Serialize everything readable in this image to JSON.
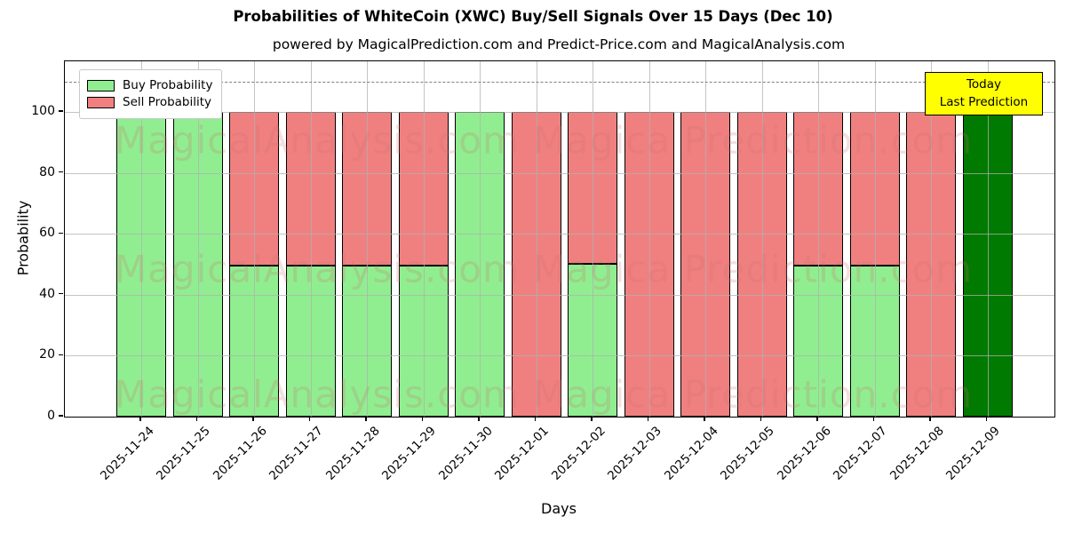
{
  "title": "Probabilities of WhiteCoin (XWC) Buy/Sell Signals Over 15 Days (Dec 10)",
  "subtitle": "powered by MagicalPrediction.com and Predict-Price.com and MagicalAnalysis.com",
  "legend": {
    "buy_label": "Buy Probability",
    "sell_label": "Sell Probability"
  },
  "annotation": {
    "line1": "Today",
    "line2": "Last Prediction"
  },
  "watermarks": {
    "left": "MagicalAnalysis.com",
    "right": "Magica Prediction.com"
  },
  "axes": {
    "xlabel": "Days",
    "ylabel": "Probability",
    "yticks": [
      0,
      20,
      40,
      60,
      80,
      100
    ],
    "ylim": [
      0,
      116.6
    ],
    "dashed_line_y": 110,
    "grid": "on"
  },
  "colors": {
    "buy": "#90EE90",
    "sell": "#F08080",
    "today": "#007A00",
    "annotation_bg": "#FFFF00",
    "grid": "#b0b0b0",
    "dashed": "#7f7f7f",
    "watermark": "rgba(205,110,110,0.22)",
    "bar_edge": "#000000"
  },
  "chart_data": {
    "type": "bar",
    "stacked": true,
    "title": "Probabilities of WhiteCoin (XWC) Buy/Sell Signals Over 15 Days (Dec 10)",
    "xlabel": "Days",
    "ylabel": "Probability",
    "ylim": [
      0,
      116.6
    ],
    "legend_position": "upper left",
    "categories": [
      "2025-11-24",
      "2025-11-25",
      "2025-11-26",
      "2025-11-27",
      "2025-11-28",
      "2025-11-29",
      "2025-11-30",
      "2025-12-01",
      "2025-12-02",
      "2025-12-03",
      "2025-12-04",
      "2025-12-05",
      "2025-12-06",
      "2025-12-07",
      "2025-12-08",
      "2025-12-09"
    ],
    "series": [
      {
        "name": "Buy Probability",
        "values": [
          100,
          100,
          49.5,
          49.5,
          49.5,
          49.5,
          100,
          0,
          50,
          0,
          0,
          0,
          49.5,
          49.5,
          0,
          100
        ]
      },
      {
        "name": "Sell Probability",
        "values": [
          0,
          0,
          50.5,
          50.5,
          50.5,
          50.5,
          0,
          100,
          50,
          100,
          100,
          100,
          50.5,
          50.5,
          100,
          0
        ]
      }
    ],
    "today_index": 15,
    "dashed_reference_line": 110
  }
}
